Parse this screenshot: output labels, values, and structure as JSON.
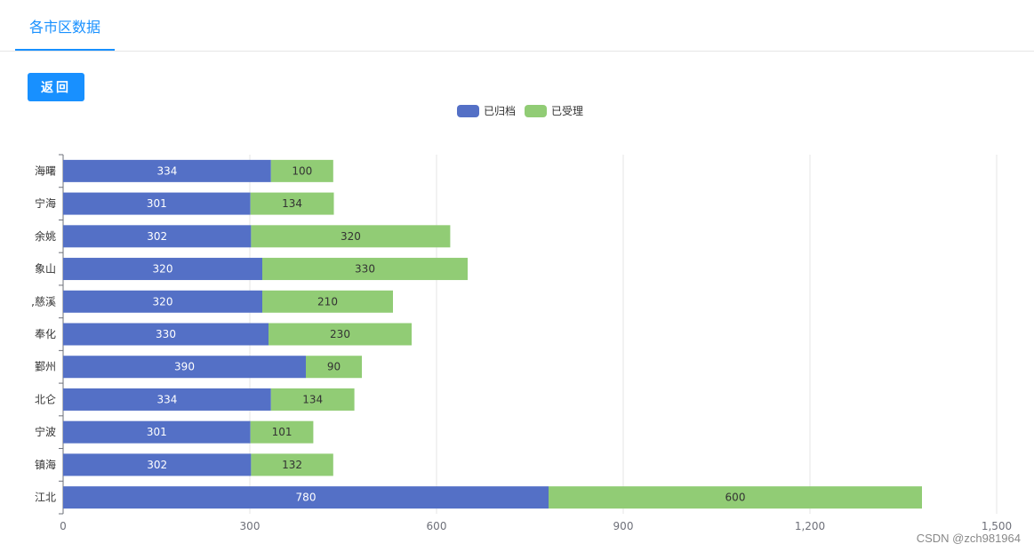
{
  "tabs": {
    "active_label": "各市区数据"
  },
  "toolbar": {
    "back_label": "返回"
  },
  "colors": {
    "accent": "#1890ff",
    "series_archived": "#5470c6",
    "series_accepted": "#91cc75"
  },
  "watermark": "CSDN @zch981964",
  "chart_data": {
    "type": "bar",
    "orientation": "horizontal",
    "stacked": true,
    "categories": [
      "海曙",
      "宁海",
      "余姚",
      "象山",
      ",慈溪",
      "奉化",
      "鄞州",
      "北仑",
      "宁波",
      "镇海",
      "江北"
    ],
    "series": [
      {
        "name": "已归档",
        "color": "#5470c6",
        "values": [
          334,
          301,
          302,
          320,
          320,
          330,
          390,
          334,
          301,
          302,
          780
        ]
      },
      {
        "name": "已受理",
        "color": "#91cc75",
        "values": [
          100,
          134,
          320,
          330,
          210,
          230,
          90,
          134,
          101,
          132,
          600
        ]
      }
    ],
    "xlim": [
      0,
      1500
    ],
    "xticks": [
      0,
      300,
      600,
      900,
      1200,
      1500
    ],
    "xtick_labels": [
      "0",
      "300",
      "600",
      "900",
      "1,200",
      "1,500"
    ],
    "grid": true,
    "legend_position": "top-center",
    "data_labels": true,
    "title": "",
    "xlabel": "",
    "ylabel": ""
  }
}
